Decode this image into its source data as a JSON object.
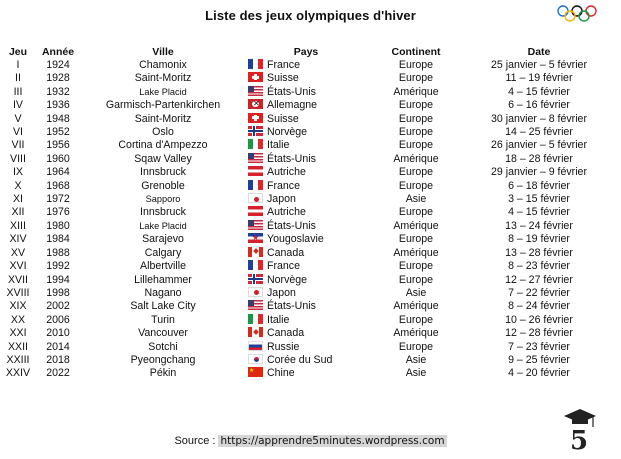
{
  "title": "Liste des jeux olympiques d'hiver",
  "headers": {
    "jeu": "Jeu",
    "annee": "Année",
    "ville": "Ville",
    "pays": "Pays",
    "continent": "Continent",
    "date": "Date"
  },
  "rows": [
    {
      "jeu": "I",
      "annee": "1924",
      "ville": "Chamonix",
      "flag": "fr",
      "pays": "France",
      "continent": "Europe",
      "date": "25 janvier – 5 février"
    },
    {
      "jeu": "II",
      "annee": "1928",
      "ville": "Saint-Moritz",
      "flag": "ch",
      "pays": "Suisse",
      "continent": "Europe",
      "date": "11 – 19 février"
    },
    {
      "jeu": "III",
      "annee": "1932",
      "ville": "Lake Placid",
      "flag": "us",
      "pays": "États-Unis",
      "continent": "Amérique",
      "date": "4 – 15 février",
      "small": true
    },
    {
      "jeu": "IV",
      "annee": "1936",
      "ville": "Garmisch-Partenkirchen",
      "flag": "de",
      "pays": "Allemagne",
      "continent": "Europe",
      "date": "6 – 16 février"
    },
    {
      "jeu": "V",
      "annee": "1948",
      "ville": "Saint-Moritz",
      "flag": "ch",
      "pays": "Suisse",
      "continent": "Europe",
      "date": "30 janvier – 8 février"
    },
    {
      "jeu": "VI",
      "annee": "1952",
      "ville": "Oslo",
      "flag": "no",
      "pays": "Norvège",
      "continent": "Europe",
      "date": "14 – 25 février"
    },
    {
      "jeu": "VII",
      "annee": "1956",
      "ville": "Cortina d'Ampezzo",
      "flag": "it",
      "pays": "Italie",
      "continent": "Europe",
      "date": "26 janvier – 5 février"
    },
    {
      "jeu": "VIII",
      "annee": "1960",
      "ville": "Sqaw Valley",
      "flag": "us",
      "pays": "États-Unis",
      "continent": "Amérique",
      "date": "18 – 28 février"
    },
    {
      "jeu": "IX",
      "annee": "1964",
      "ville": "Innsbruck",
      "flag": "at",
      "pays": "Autriche",
      "continent": "Europe",
      "date": "29 janvier – 9 février"
    },
    {
      "jeu": "X",
      "annee": "1968",
      "ville": "Grenoble",
      "flag": "fr",
      "pays": "France",
      "continent": "Europe",
      "date": "6 – 18 février"
    },
    {
      "jeu": "XI",
      "annee": "1972",
      "ville": "Sapporo",
      "flag": "jp",
      "pays": "Japon",
      "continent": "Asie",
      "date": "3 – 15 février",
      "small": true
    },
    {
      "jeu": "XII",
      "annee": "1976",
      "ville": "Innsbruck",
      "flag": "at",
      "pays": "Autriche",
      "continent": "Europe",
      "date": "4 – 15 février"
    },
    {
      "jeu": "XIII",
      "annee": "1980",
      "ville": "Lake Placid",
      "flag": "us",
      "pays": "États-Unis",
      "continent": "Amérique",
      "date": "13 – 24 février",
      "small": true
    },
    {
      "jeu": "XIV",
      "annee": "1984",
      "ville": "Sarajevo",
      "flag": "yu",
      "pays": "Yougoslavie",
      "continent": "Europe",
      "date": "8 – 19 février"
    },
    {
      "jeu": "XV",
      "annee": "1988",
      "ville": "Calgary",
      "flag": "ca",
      "pays": "Canada",
      "continent": "Amérique",
      "date": "13 – 28 février"
    },
    {
      "jeu": "XVI",
      "annee": "1992",
      "ville": "Albertville",
      "flag": "fr",
      "pays": "France",
      "continent": "Europe",
      "date": "8 – 23 février"
    },
    {
      "jeu": "XVII",
      "annee": "1994",
      "ville": "Lillehammer",
      "flag": "no",
      "pays": "Norvège",
      "continent": "Europe",
      "date": "12 – 27 février"
    },
    {
      "jeu": "XVIII",
      "annee": "1998",
      "ville": "Nagano",
      "flag": "jp",
      "pays": "Japon",
      "continent": "Asie",
      "date": "7 – 22 février"
    },
    {
      "jeu": "XIX",
      "annee": "2002",
      "ville": "Salt Lake City",
      "flag": "us",
      "pays": "États-Unis",
      "continent": "Amérique",
      "date": "8 – 24 février"
    },
    {
      "jeu": "XX",
      "annee": "2006",
      "ville": "Turin",
      "flag": "it",
      "pays": "Italie",
      "continent": "Europe",
      "date": "10 – 26 février"
    },
    {
      "jeu": "XXI",
      "annee": "2010",
      "ville": "Vancouver",
      "flag": "ca",
      "pays": "Canada",
      "continent": "Amérique",
      "date": "12 – 28 février"
    },
    {
      "jeu": "XXII",
      "annee": "2014",
      "ville": "Sotchi",
      "flag": "ru",
      "pays": "Russie",
      "continent": "Europe",
      "date": "7 – 23 février"
    },
    {
      "jeu": "XXIII",
      "annee": "2018",
      "ville": "Pyeongchang",
      "flag": "kr",
      "pays": "Corée du Sud",
      "continent": "Asie",
      "date": "9 – 25 février"
    },
    {
      "jeu": "XXIV",
      "annee": "2022",
      "ville": "Pékin",
      "flag": "cn",
      "pays": "Chine",
      "continent": "Asie",
      "date": "4 – 20 février"
    }
  ],
  "source": {
    "label": "Source :",
    "url": "https://apprendre5minutes.wordpress.com"
  },
  "icons": {
    "rings": "olympic-rings-icon",
    "logo": "graduation-cap-5-logo"
  }
}
